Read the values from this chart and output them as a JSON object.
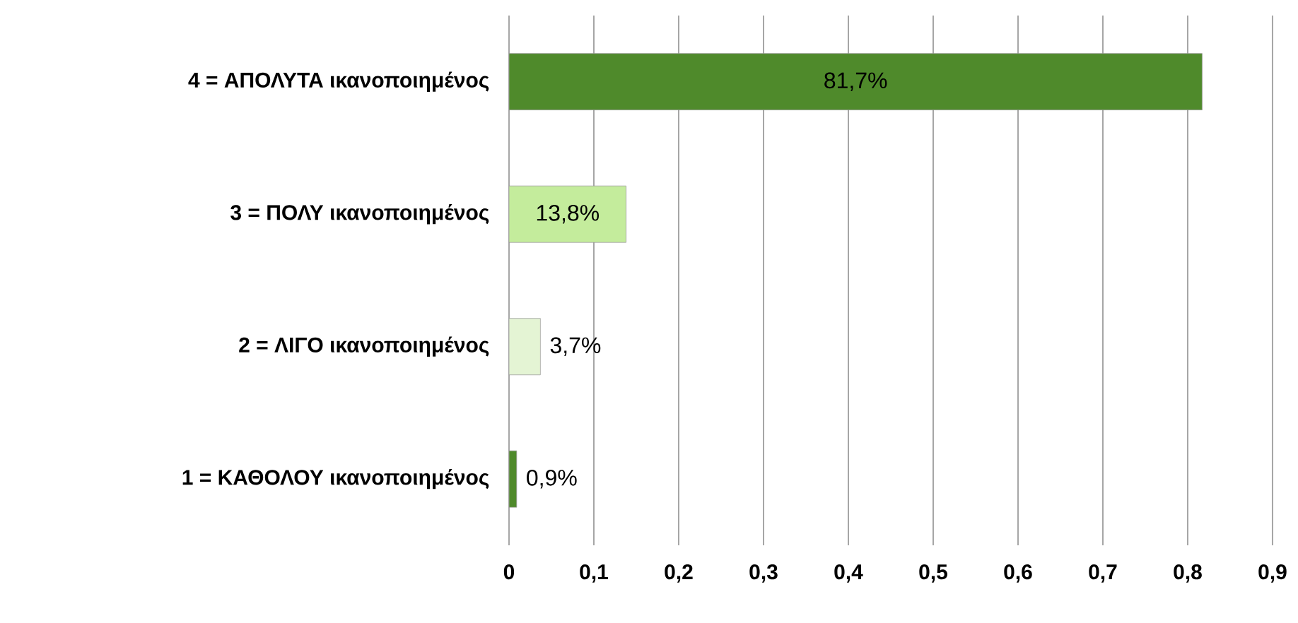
{
  "chart_data": {
    "type": "bar",
    "orientation": "horizontal",
    "categories": [
      "4 = ΑΠΟΛΥΤΑ ικανοποιημένος",
      "3 = ΠΟΛΥ ικανοποιημένος",
      "2 = ΛΙΓΟ ικανοποιημένος",
      "1 = ΚΑΘΟΛΟΥ ικανοποιημένος"
    ],
    "values": [
      0.817,
      0.138,
      0.037,
      0.009
    ],
    "colors": [
      "#4f8a2b",
      "#c4ec9c",
      "#e4f4d4",
      "#4f8a2b"
    ],
    "value_labels": [
      "81,7%",
      "13,8%",
      "3,7%",
      "0,9%"
    ],
    "xlim": [
      0,
      0.9
    ],
    "xticks": [
      0,
      {
        "value": 0.1,
        "label": "0,1"
      },
      {
        "value": 0.2,
        "label": "0,2"
      },
      {
        "value": 0.3,
        "label": "0,3"
      },
      {
        "value": 0.4,
        "label": "0,4"
      },
      {
        "value": 0.5,
        "label": "0,5"
      },
      {
        "value": 0.6,
        "label": "0,6"
      },
      {
        "value": 0.7,
        "label": "0,7"
      },
      {
        "value": 0.8,
        "label": "0,8"
      },
      {
        "value": 0.9,
        "label": "0,9"
      }
    ],
    "grid": "x"
  }
}
